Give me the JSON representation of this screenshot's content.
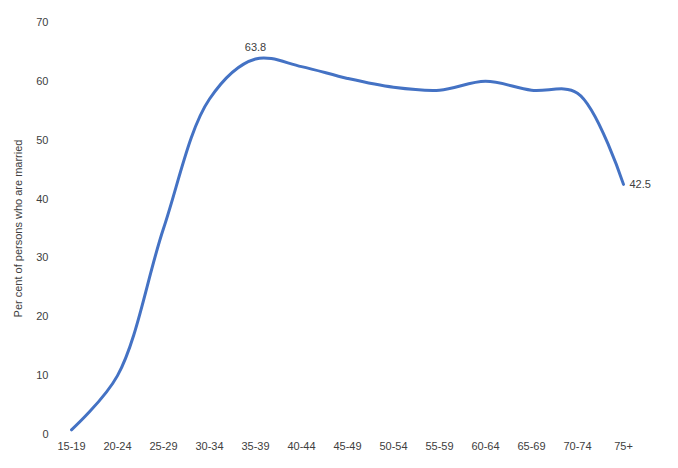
{
  "chart_data": {
    "type": "line",
    "y_label": "Per cent of persons who are married",
    "categories": [
      "15-19",
      "20-24",
      "25-29",
      "30-34",
      "35-39",
      "40-44",
      "45-49",
      "50-54",
      "55-59",
      "60-64",
      "65-69",
      "70-74",
      "75+"
    ],
    "values": [
      0.8,
      10,
      35,
      57,
      63.8,
      62.5,
      60.5,
      59,
      58.5,
      60,
      58.5,
      58,
      42.5
    ],
    "value_labels": [
      null,
      null,
      null,
      null,
      "63.8",
      null,
      null,
      null,
      null,
      null,
      null,
      null,
      "42.5"
    ],
    "data_labels": true,
    "color": "#4472c4",
    "line_style": "smooth",
    "ylim": [
      0,
      70
    ],
    "yticks": [
      0,
      10,
      20,
      30,
      40,
      50,
      60,
      70
    ],
    "grid": false
  }
}
